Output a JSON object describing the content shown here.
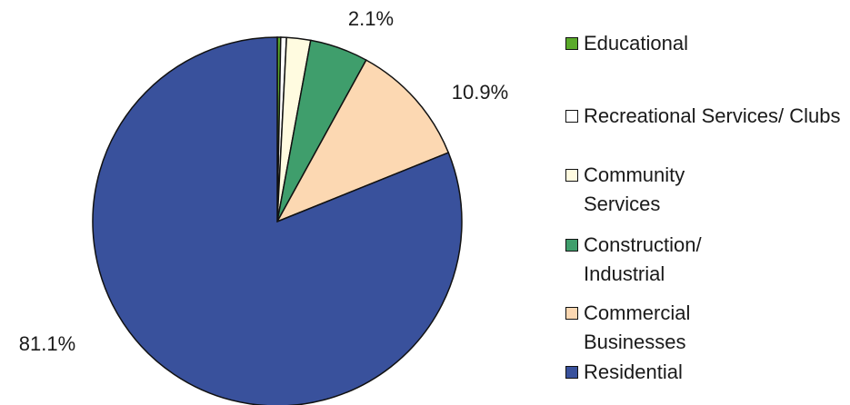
{
  "chart_data": {
    "type": "pie",
    "categories": [
      "Educational",
      "Recreational Services/ Clubs",
      "Community Services",
      "Construction/ Industrial",
      "Commercial Businesses",
      "Residential"
    ],
    "values": [
      0.3,
      0.5,
      2.1,
      5.1,
      10.9,
      81.1
    ],
    "value_labels": [
      null,
      null,
      "2.1%",
      null,
      "10.9%",
      "81.1%"
    ],
    "colors": [
      "#5aaa2a",
      "#ffffff",
      "#fffbe0",
      "#3f9e6c",
      "#fcd8b2",
      "#39519c"
    ],
    "legend": "right"
  }
}
